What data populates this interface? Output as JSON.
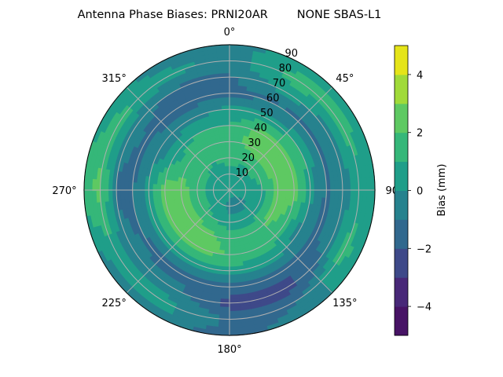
{
  "chart_data": {
    "type": "heatmap",
    "subtype": "polar filled contour",
    "title": "Antenna Phase Biases: PRNI20AR        NONE SBAS-L1",
    "theta_direction": "clockwise",
    "theta_zero": "top",
    "theta_tick_labels": [
      "0°",
      "45°",
      "90°",
      "135°",
      "180°",
      "225°",
      "270°",
      "315°"
    ],
    "theta_ticks": [
      0,
      45,
      90,
      135,
      180,
      225,
      270,
      315
    ],
    "r_ticks": [
      10,
      20,
      30,
      40,
      50,
      60,
      70,
      80,
      90
    ],
    "r_tick_labels": [
      "10",
      "20",
      "30",
      "40",
      "50",
      "60",
      "70",
      "80",
      "90"
    ],
    "rlim": [
      0,
      90
    ],
    "grid": true,
    "azimuths": [
      0,
      30,
      60,
      90,
      120,
      150,
      180,
      210,
      240,
      270,
      300,
      330
    ],
    "radii": [
      0,
      10,
      20,
      30,
      40,
      50,
      60,
      70,
      80,
      90
    ],
    "values": [
      [
        0.5,
        0.5,
        1.5,
        1.5,
        1.0,
        0.3,
        -1.2,
        -1.2,
        -0.5,
        -0.5
      ],
      [
        0.5,
        0.5,
        1.2,
        2.5,
        2.5,
        0.5,
        -1.2,
        0.5,
        1.5,
        0.5
      ],
      [
        0.5,
        0.5,
        1.5,
        2.5,
        2.5,
        1.0,
        -1.2,
        -0.5,
        1.5,
        0.5
      ],
      [
        0.5,
        0.3,
        0.8,
        2.5,
        2.5,
        0.5,
        -1.2,
        -0.5,
        0.5,
        0.5
      ],
      [
        0.5,
        0.0,
        0.5,
        2.5,
        1.5,
        -0.5,
        -1.2,
        -0.5,
        1.5,
        0.5
      ],
      [
        0.5,
        -0.5,
        0.5,
        1.5,
        1.5,
        0.5,
        -1.5,
        -2.5,
        -1.2,
        -0.5
      ],
      [
        0.5,
        -0.5,
        0.5,
        1.5,
        2.0,
        0.5,
        -1.2,
        -2.5,
        -1.2,
        -1.5
      ],
      [
        0.5,
        0.5,
        1.0,
        2.5,
        2.5,
        0.5,
        -1.5,
        -0.5,
        0.5,
        -0.5
      ],
      [
        0.5,
        0.5,
        1.5,
        2.5,
        2.5,
        0.5,
        -1.2,
        -0.5,
        0.5,
        -0.5
      ],
      [
        0.5,
        0.5,
        1.5,
        2.5,
        2.5,
        0.5,
        -1.2,
        -1.2,
        2.5,
        1.5
      ],
      [
        0.5,
        0.5,
        1.5,
        1.5,
        0.5,
        -0.5,
        -1.2,
        -0.5,
        1.5,
        0.5
      ],
      [
        0.5,
        0.5,
        1.0,
        1.5,
        1.0,
        -0.5,
        -1.5,
        -1.2,
        0.5,
        -0.5
      ]
    ],
    "levels": [
      -5,
      -4,
      -3,
      -2,
      -1,
      0,
      1,
      2,
      3,
      4,
      5
    ],
    "colormap": "viridis",
    "level_colors": [
      "#471365",
      "#482878",
      "#3e4989",
      "#31688e",
      "#26828e",
      "#1f9e89",
      "#35b779",
      "#5ec962",
      "#a0da39",
      "#e5e419"
    ],
    "colorbar": {
      "label": "Bias (mm)",
      "range": [
        -5,
        5
      ],
      "ticks": [
        -4,
        -2,
        0,
        2,
        4
      ],
      "tick_labels": [
        "−4",
        "−2",
        "0",
        "2",
        "4"
      ]
    }
  }
}
